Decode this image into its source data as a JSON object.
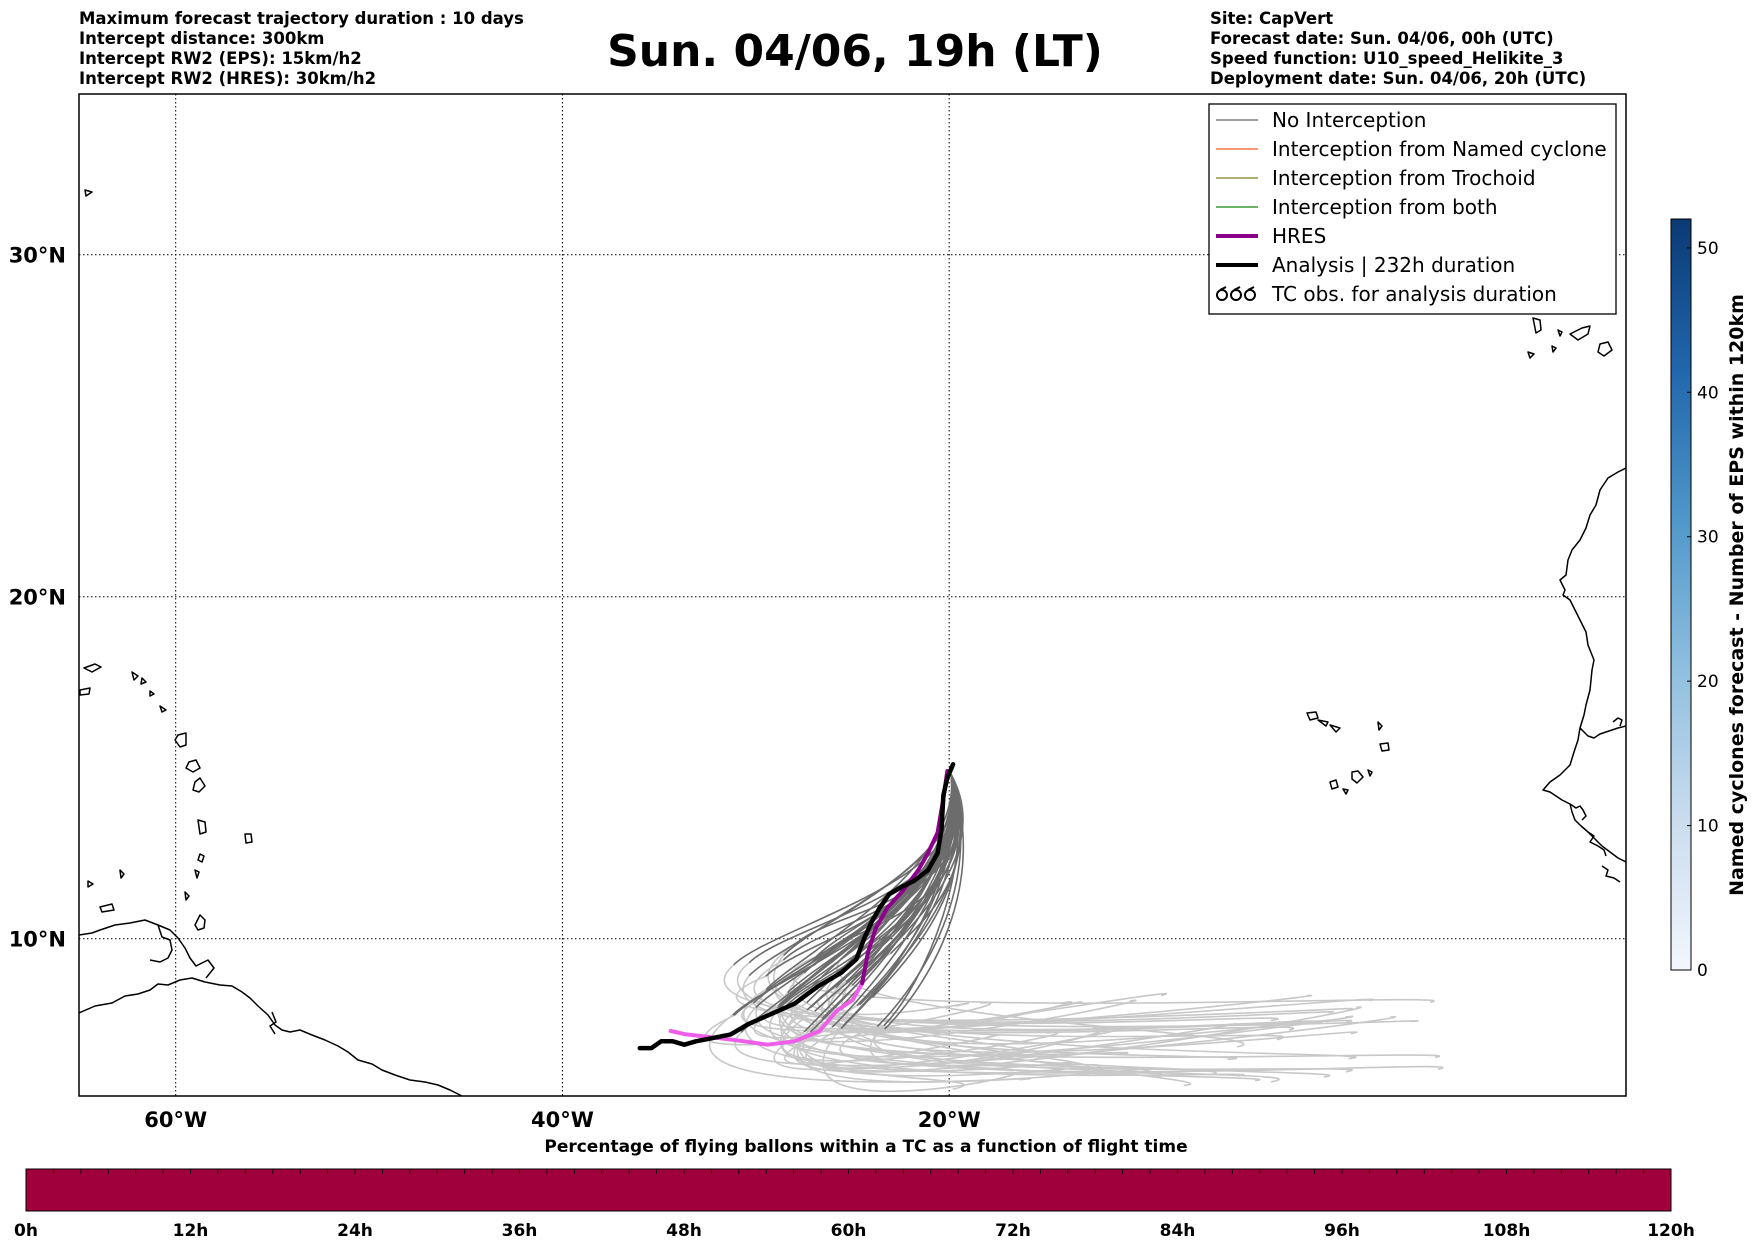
{
  "header_left": [
    "Maximum forecast trajectory duration : 10 days",
    "Intercept distance: 300km",
    "Intercept RW2 (EPS):  15km/h2",
    "Intercept RW2 (HRES): 30km/h2"
  ],
  "title": "Sun. 04/06, 19h (LT)",
  "header_right": [
    "Site: CapVert",
    "Forecast date: Sun. 04/06, 00h (UTC)",
    "Speed function: U10_speed_Helikite_3",
    "Deployment date: Sun. 04/06, 20h (UTC)"
  ],
  "map": {
    "lon_range": [
      -65,
      15
    ],
    "lat_range": [
      5.4,
      34.7
    ],
    "lon_ticks": [
      {
        "value": -60,
        "label": "60°W"
      },
      {
        "value": -40,
        "label": "40°W"
      },
      {
        "value": -20,
        "label": "20°W"
      }
    ],
    "lat_ticks": [
      {
        "value": 30,
        "label": "30°N"
      },
      {
        "value": 20,
        "label": "20°N"
      },
      {
        "value": 10,
        "label": "10°N"
      }
    ],
    "grid": "dotted"
  },
  "legend": {
    "placement": "top-right",
    "items": [
      {
        "label": "No Interception",
        "color": "#808080",
        "style": "thin"
      },
      {
        "label": "Interception from Named cyclone",
        "color": "#f07a45",
        "style": "thin"
      },
      {
        "label": "Interception from Trochoid",
        "color": "#9a9440",
        "style": "thin"
      },
      {
        "label": "Interception from both",
        "color": "#3a9a3a",
        "style": "thin"
      },
      {
        "label": "HRES",
        "color": "#8b008b",
        "style": "thick"
      },
      {
        "label": "Analysis | 232h duration",
        "color": "#000000",
        "style": "thick"
      },
      {
        "label": "TC obs. for analysis duration",
        "color": "#000000",
        "style": "tc-symbol",
        "icon": "tc-symbol-icon"
      }
    ]
  },
  "colorbar": {
    "label": "Named cyclones forecast - Number of EPS within 120km",
    "range": [
      0,
      52
    ],
    "ticks": [
      0,
      10,
      20,
      30,
      40,
      50
    ],
    "colormap": "Blues"
  },
  "percentage_bar": {
    "title": "Percentage of flying ballons within a TC as a function of flight time",
    "color": "#a0003c",
    "ticks": [
      "0h",
      "12h",
      "24h",
      "36h",
      "48h",
      "60h",
      "72h",
      "84h",
      "96h",
      "108h",
      "120h"
    ]
  },
  "chart_data": {
    "type": "map-trajectories",
    "site": "CapVert",
    "hres_track": [
      [
        -20.1,
        14.9
      ],
      [
        -20.3,
        14.1
      ],
      [
        -20.6,
        13.1
      ],
      [
        -21.1,
        12.5
      ],
      [
        -21.6,
        12.0
      ],
      [
        -22.4,
        11.4
      ],
      [
        -23.2,
        10.9
      ],
      [
        -23.8,
        10.3
      ],
      [
        -24.2,
        9.6
      ],
      [
        -24.5,
        8.7
      ],
      [
        -25.0,
        8.2
      ],
      [
        -25.8,
        7.9
      ],
      [
        -26.7,
        7.3
      ],
      [
        -28.0,
        7.0
      ],
      [
        -29.4,
        6.9
      ],
      [
        -30.6,
        7.0
      ],
      [
        -32.0,
        7.1
      ],
      [
        -33.6,
        7.2
      ],
      [
        -34.4,
        7.3
      ]
    ],
    "analysis_track": [
      [
        -19.8,
        15.1
      ],
      [
        -20.1,
        14.7
      ],
      [
        -20.3,
        14.2
      ],
      [
        -20.4,
        13.2
      ],
      [
        -20.6,
        12.5
      ],
      [
        -21.1,
        12.0
      ],
      [
        -21.8,
        11.7
      ],
      [
        -22.5,
        11.5
      ],
      [
        -23.1,
        11.3
      ],
      [
        -23.6,
        10.9
      ],
      [
        -24.0,
        10.5
      ],
      [
        -24.4,
        10.0
      ],
      [
        -24.8,
        9.4
      ],
      [
        -25.6,
        9.0
      ],
      [
        -26.8,
        8.6
      ],
      [
        -28.0,
        8.1
      ],
      [
        -29.2,
        7.8
      ],
      [
        -30.4,
        7.5
      ],
      [
        -31.3,
        7.2
      ],
      [
        -32.2,
        7.1
      ],
      [
        -33.1,
        7.0
      ],
      [
        -33.7,
        6.9
      ],
      [
        -34.3,
        7.0
      ],
      [
        -34.9,
        7.0
      ],
      [
        -35.4,
        6.8
      ],
      [
        -36.0,
        6.8
      ]
    ],
    "eps_members_shown": "grey ensemble spaghetti (No Interception)"
  }
}
